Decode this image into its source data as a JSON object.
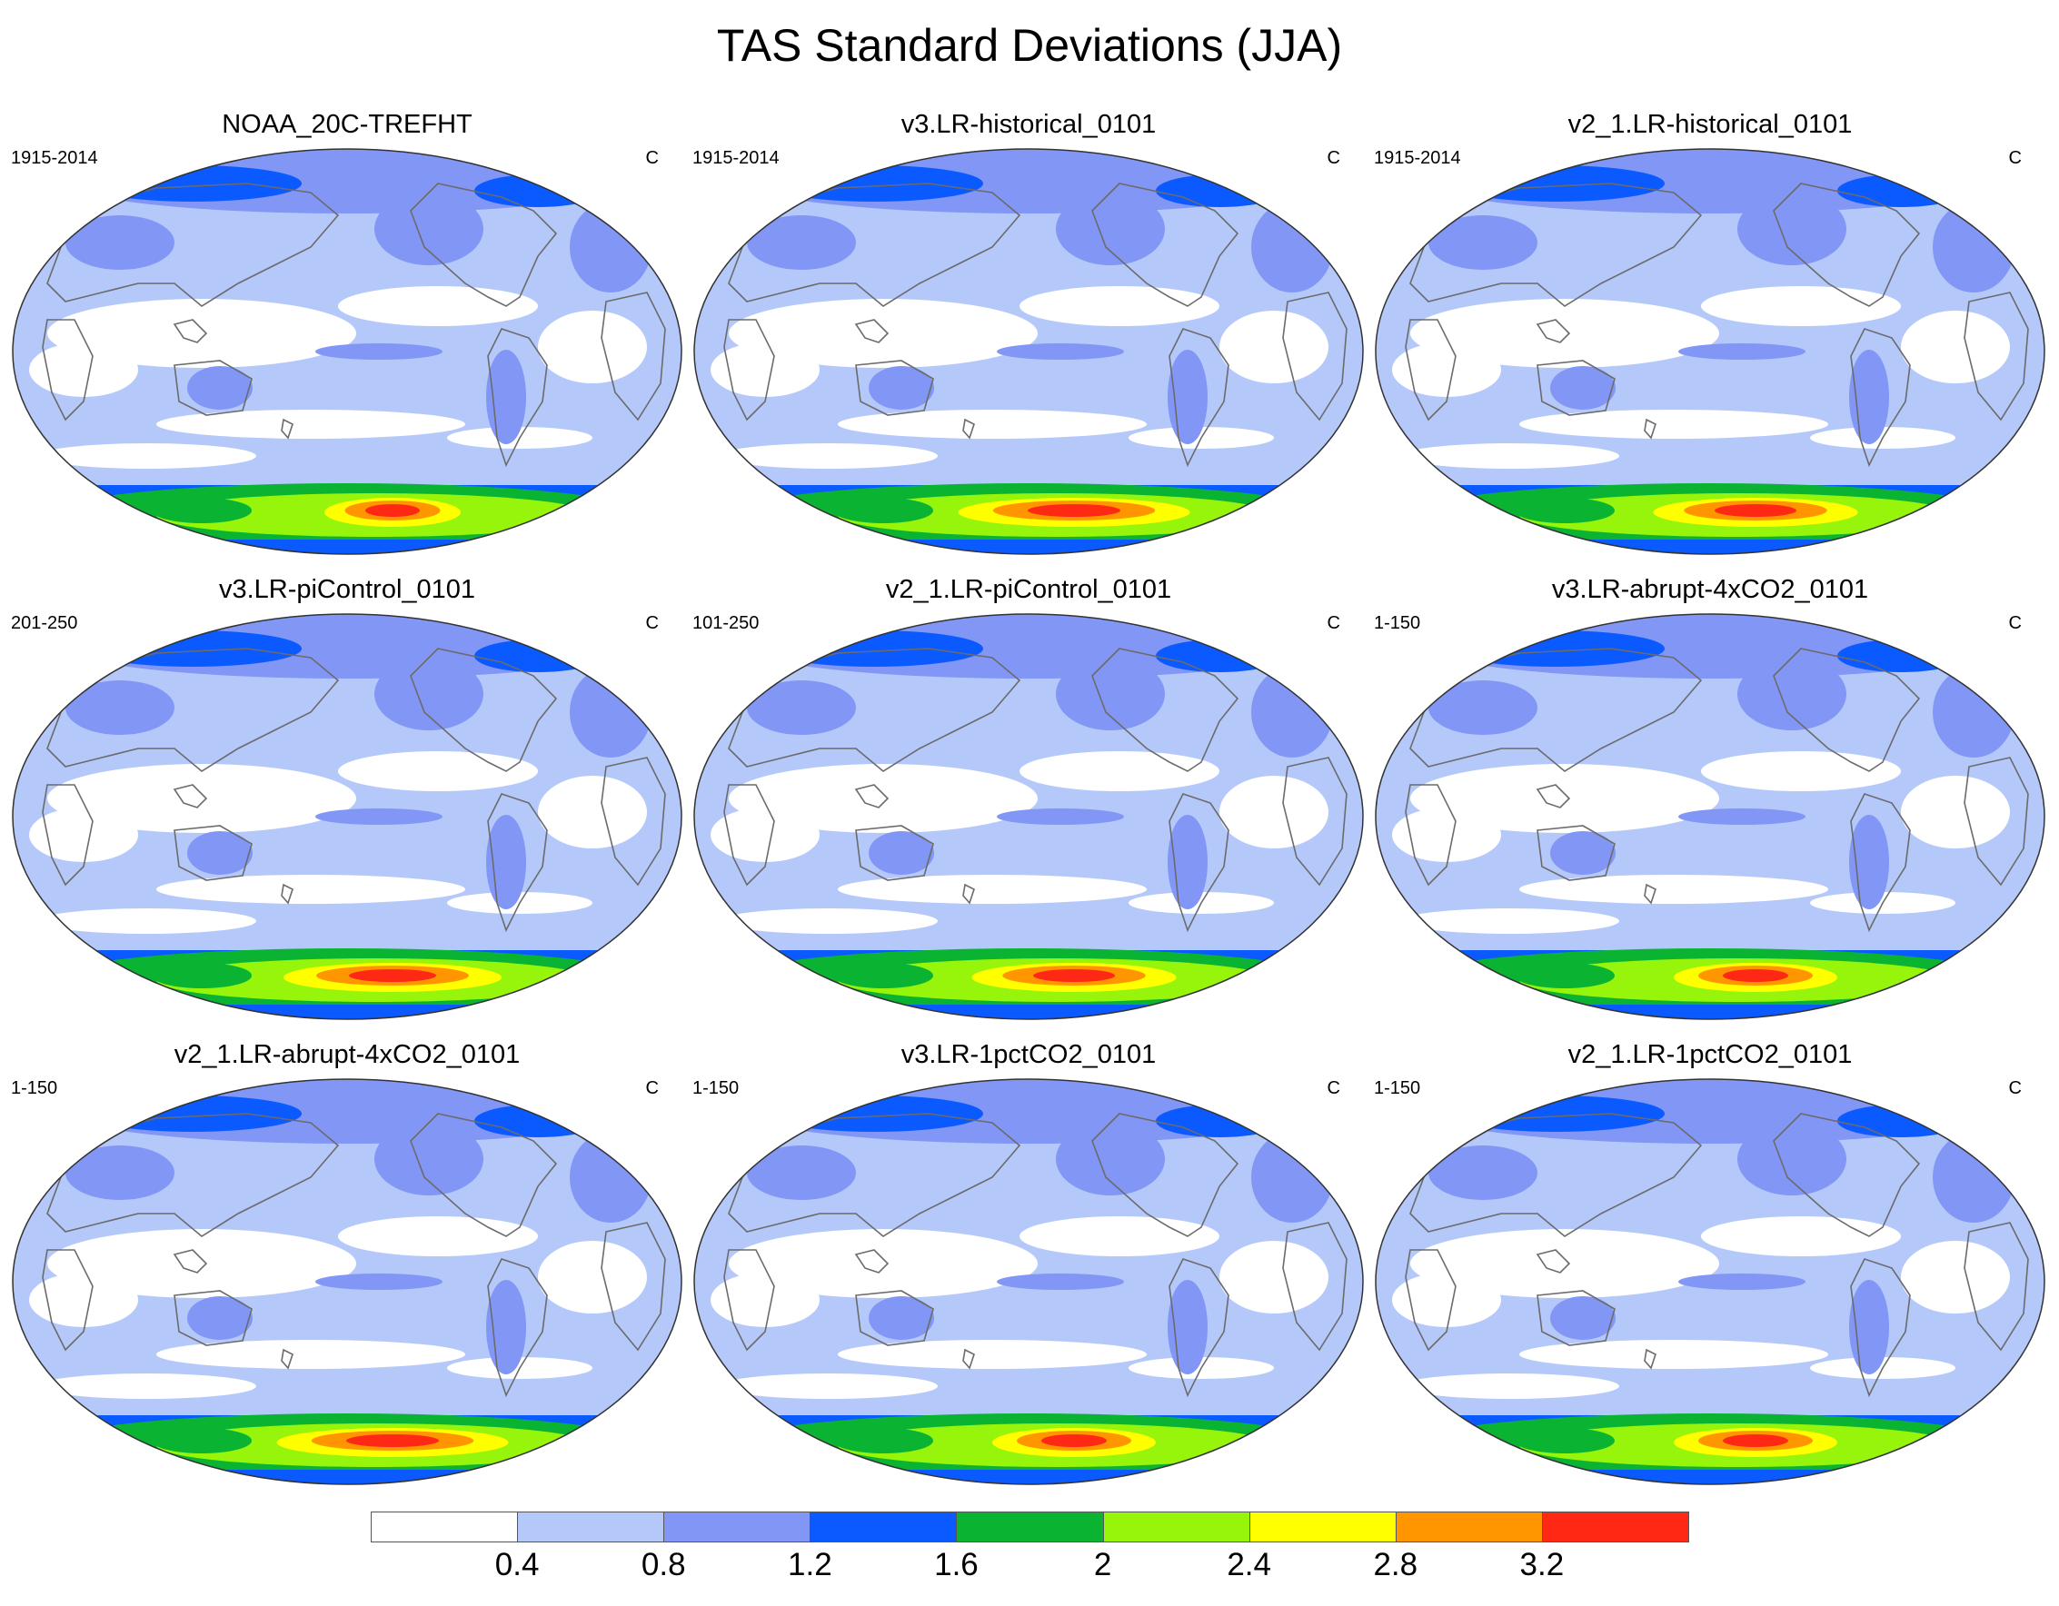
{
  "figure": {
    "title": "TAS Standard Deviations (JJA)"
  },
  "panels": [
    {
      "title": "NOAA_20C-TREFHT",
      "period": "1915-2014",
      "units": "C",
      "hot": 0.5
    },
    {
      "title": "v3.LR-historical_0101",
      "period": "1915-2014",
      "units": "C",
      "hot": 0.85
    },
    {
      "title": "v2_1.LR-historical_0101",
      "period": "1915-2014",
      "units": "C",
      "hot": 0.75
    },
    {
      "title": "v3.LR-piControl_0101",
      "period": "201-250",
      "units": "C",
      "hot": 0.8
    },
    {
      "title": "v2_1.LR-piControl_0101",
      "period": "101-250",
      "units": "C",
      "hot": 0.75
    },
    {
      "title": "v3.LR-abrupt-4xCO2_0101",
      "period": "1-150",
      "units": "C",
      "hot": 0.6
    },
    {
      "title": "v2_1.LR-abrupt-4xCO2_0101",
      "period": "1-150",
      "units": "C",
      "hot": 0.85
    },
    {
      "title": "v3.LR-1pctCO2_0101",
      "period": "1-150",
      "units": "C",
      "hot": 0.6
    },
    {
      "title": "v2_1.LR-1pctCO2_0101",
      "period": "1-150",
      "units": "C",
      "hot": 0.6
    }
  ],
  "colorbar": {
    "colors": [
      "#ffffff",
      "#b4c8fa",
      "#8296f5",
      "#0a5aff",
      "#0ab432",
      "#96f50a",
      "#ffff00",
      "#ff9600",
      "#ff2814"
    ],
    "labels": [
      "0.4",
      "0.8",
      "1.2",
      "1.6",
      "2",
      "2.4",
      "2.8",
      "3.2"
    ]
  },
  "chart_data": {
    "type": "map",
    "title": "TAS Standard Deviations (JJA)",
    "units": "C",
    "contour_levels": [
      0.4,
      0.8,
      1.2,
      1.6,
      2,
      2.4,
      2.8,
      3.2
    ],
    "panels": [
      "NOAA_20C-TREFHT",
      "v3.LR-historical_0101",
      "v2_1.LR-historical_0101",
      "v3.LR-piControl_0101",
      "v2_1.LR-piControl_0101",
      "v3.LR-abrupt-4xCO2_0101",
      "v2_1.LR-abrupt-4xCO2_0101",
      "v3.LR-1pctCO2_0101",
      "v2_1.LR-1pctCO2_0101"
    ]
  }
}
